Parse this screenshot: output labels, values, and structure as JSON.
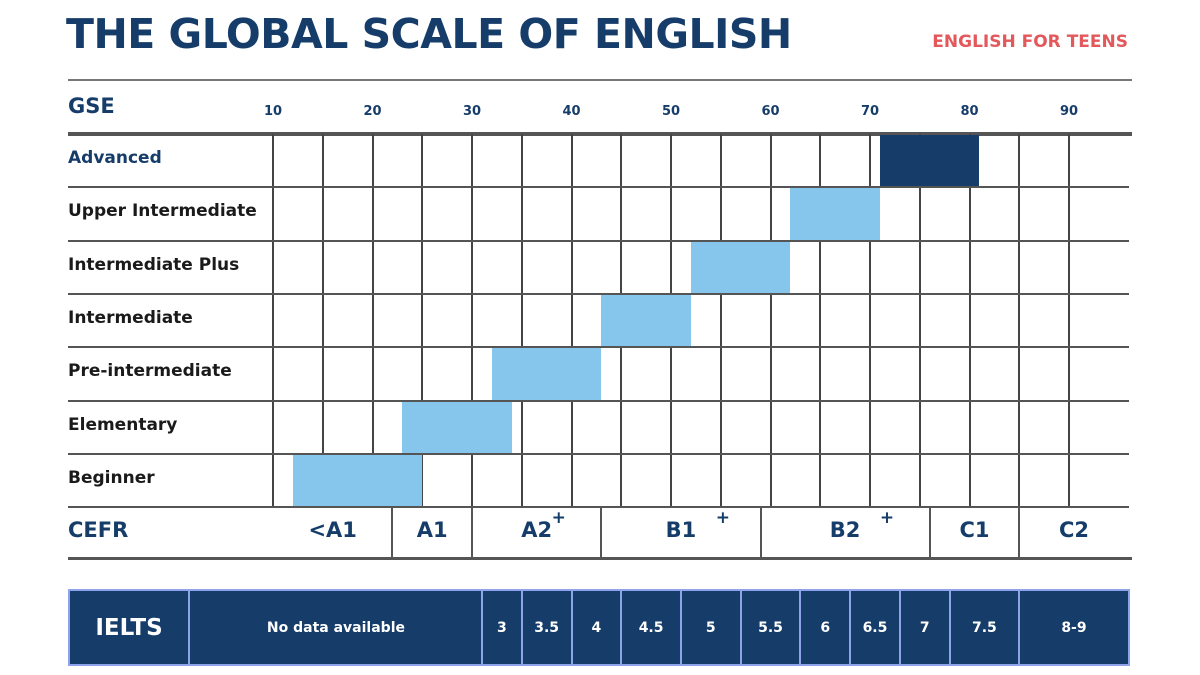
{
  "title": "THE GLOBAL SCALE OF ENGLISH",
  "subtitle": "ENGLISH FOR TEENS",
  "colors": {
    "navy": "#163d6a",
    "light_blue": "#87c6ec",
    "coral": "#e2585b",
    "ielts_border": "#8fa3ea"
  },
  "chart_data": {
    "type": "bar",
    "orientation": "horizontal-range",
    "xlabel": "GSE",
    "xticks": [
      10,
      20,
      30,
      40,
      50,
      60,
      70,
      80,
      90
    ],
    "xlim": [
      10,
      96
    ],
    "grid": true,
    "series": [
      {
        "category": "Advanced",
        "start": 71,
        "end": 81,
        "color": "#163d6a"
      },
      {
        "category": "Upper Intermediate",
        "start": 62,
        "end": 71,
        "color": "#87c6ec"
      },
      {
        "category": "Intermediate Plus",
        "start": 52,
        "end": 62,
        "color": "#87c6ec"
      },
      {
        "category": "Intermediate",
        "start": 43,
        "end": 52,
        "color": "#87c6ec"
      },
      {
        "category": "Pre-intermediate",
        "start": 32,
        "end": 43,
        "color": "#87c6ec"
      },
      {
        "category": "Elementary",
        "start": 23,
        "end": 34,
        "color": "#87c6ec"
      },
      {
        "category": "Beginner",
        "start": 12,
        "end": 25,
        "color": "#87c6ec"
      }
    ],
    "cefr": {
      "label": "CEFR",
      "bands": [
        {
          "label": "<A1",
          "start": 10,
          "end": 22
        },
        {
          "label": "A1",
          "start": 22,
          "end": 30
        },
        {
          "label": "A2",
          "start": 30,
          "end": 43
        },
        {
          "label": "B1",
          "start": 43,
          "end": 59
        },
        {
          "label": "B2",
          "start": 59,
          "end": 76
        },
        {
          "label": "C1",
          "start": 76,
          "end": 85
        },
        {
          "label": "C2",
          "start": 85,
          "end": 96
        }
      ],
      "plus_markers": [
        {
          "label": "+",
          "at": 38.5
        },
        {
          "label": "+",
          "at": 55
        },
        {
          "label": "+",
          "at": 71.5
        }
      ]
    },
    "ielts": {
      "label": "IELTS",
      "bands": [
        {
          "label": "No data available",
          "start": 10,
          "end": 31
        },
        {
          "label": "3",
          "start": 31,
          "end": 35
        },
        {
          "label": "3.5",
          "start": 35,
          "end": 40
        },
        {
          "label": "4",
          "start": 40,
          "end": 45
        },
        {
          "label": "4.5",
          "start": 45,
          "end": 51
        },
        {
          "label": "5",
          "start": 51,
          "end": 57
        },
        {
          "label": "5.5",
          "start": 57,
          "end": 63
        },
        {
          "label": "6",
          "start": 63,
          "end": 68
        },
        {
          "label": "6.5",
          "start": 68,
          "end": 73
        },
        {
          "label": "7",
          "start": 73,
          "end": 78
        },
        {
          "label": "7.5",
          "start": 78,
          "end": 85
        },
        {
          "label": "8-9",
          "start": 85,
          "end": 96
        }
      ]
    }
  }
}
